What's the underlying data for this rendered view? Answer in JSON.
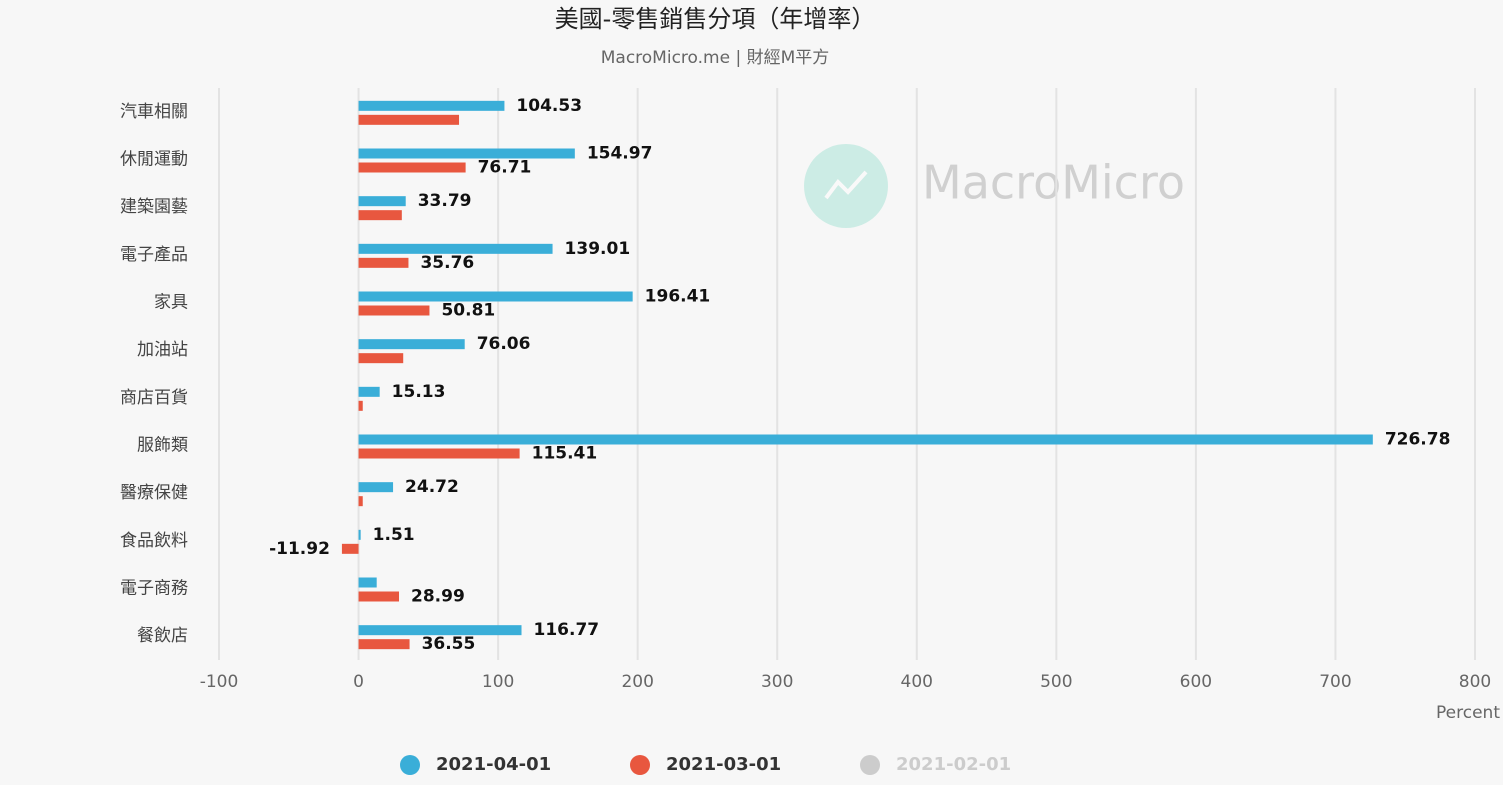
{
  "chart_data": {
    "type": "hbar",
    "title": "美國-零售銷售分項（年增率）",
    "subtitle": "MacroMicro.me | 財經M平方",
    "watermark": "MacroMicro",
    "x_label": "Percent",
    "categories": [
      "汽車相關",
      "休閒運動",
      "建築園藝",
      "電子產品",
      "家具",
      "加油站",
      "商店百貨",
      "服飾類",
      "醫療保健",
      "食品飲料",
      "電子商務",
      "餐飲店"
    ],
    "series": [
      {
        "name": "2021-04-01",
        "color": "#3aaed8",
        "values": [
          104.53,
          154.97,
          33.79,
          139.01,
          196.41,
          76.06,
          15.13,
          726.78,
          24.72,
          1.51,
          13,
          116.77
        ],
        "value_labels": [
          "104.53",
          "154.97",
          "33.79",
          "139.01",
          "196.41",
          "76.06",
          "15.13",
          "726.78",
          "24.72",
          "1.51",
          null,
          "116.77"
        ]
      },
      {
        "name": "2021-03-01",
        "color": "#e8573f",
        "values": [
          72,
          76.71,
          31,
          35.76,
          50.81,
          32,
          3,
          115.41,
          3,
          -11.92,
          28.99,
          36.55
        ],
        "value_labels": [
          null,
          "76.71",
          null,
          "35.76",
          "50.81",
          null,
          null,
          "115.41",
          null,
          "-11.92",
          "28.99",
          "36.55"
        ]
      },
      {
        "name": "2021-02-01",
        "color": "#cccccc",
        "hidden": true
      }
    ],
    "xlim": [
      -100,
      800
    ],
    "xticks": [
      -100,
      0,
      100,
      200,
      300,
      400,
      500,
      600,
      700,
      800
    ],
    "grid": true,
    "legend": "bottom"
  }
}
